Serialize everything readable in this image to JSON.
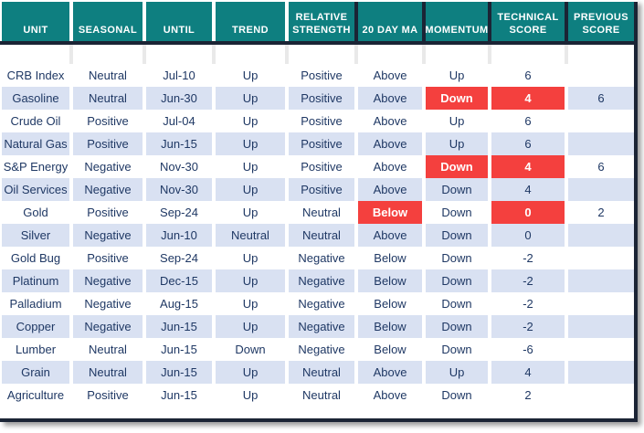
{
  "table": {
    "columns": [
      {
        "label": "UNIT"
      },
      {
        "label": "SEASONAL"
      },
      {
        "label": "UNTIL"
      },
      {
        "label": "TREND"
      },
      {
        "label": "RELATIVE STRENGTH"
      },
      {
        "label": "20 DAY MA",
        "dark_divider": true
      },
      {
        "label": "MOMENTUM",
        "dark_divider": true
      },
      {
        "label": "TECHNICAL SCORE",
        "dark_divider": true
      },
      {
        "label": "PREVIOUS SCORE",
        "dark_divider": true
      }
    ],
    "rows": [
      {
        "cells": [
          "CRB Index",
          "Neutral",
          "Jul-10",
          "Up",
          "Positive",
          "Above",
          "Up",
          "6",
          ""
        ],
        "alerts": []
      },
      {
        "cells": [
          "Gasoline",
          "Neutral",
          "Jun-30",
          "Up",
          "Positive",
          "Above",
          "Down",
          "4",
          "6"
        ],
        "alerts": [
          6,
          7
        ]
      },
      {
        "cells": [
          "Crude Oil",
          "Positive",
          "Jul-04",
          "Up",
          "Positive",
          "Above",
          "Up",
          "6",
          ""
        ],
        "alerts": []
      },
      {
        "cells": [
          "Natural Gas",
          "Positive",
          "Jun-15",
          "Up",
          "Positive",
          "Above",
          "Up",
          "6",
          ""
        ],
        "alerts": []
      },
      {
        "cells": [
          "S&P Energy",
          "Negative",
          "Nov-30",
          "Up",
          "Positive",
          "Above",
          "Down",
          "4",
          "6"
        ],
        "alerts": [
          6,
          7
        ]
      },
      {
        "cells": [
          "Oil Services",
          "Negative",
          "Nov-30",
          "Up",
          "Positive",
          "Above",
          "Down",
          "4",
          ""
        ],
        "alerts": []
      },
      {
        "cells": [
          "Gold",
          "Positive",
          "Sep-24",
          "Up",
          "Neutral",
          "Below",
          "Down",
          "0",
          "2"
        ],
        "alerts": [
          5,
          7
        ]
      },
      {
        "cells": [
          "Silver",
          "Negative",
          "Jun-10",
          "Neutral",
          "Neutral",
          "Above",
          "Down",
          "0",
          ""
        ],
        "alerts": []
      },
      {
        "cells": [
          "Gold Bug",
          "Positive",
          "Sep-24",
          "Up",
          "Negative",
          "Below",
          "Down",
          "-2",
          ""
        ],
        "alerts": []
      },
      {
        "cells": [
          "Platinum",
          "Negative",
          "Dec-15",
          "Up",
          "Negative",
          "Below",
          "Down",
          "-2",
          ""
        ],
        "alerts": []
      },
      {
        "cells": [
          "Palladium",
          "Negative",
          "Aug-15",
          "Up",
          "Negative",
          "Below",
          "Down",
          "-2",
          ""
        ],
        "alerts": []
      },
      {
        "cells": [
          "Copper",
          "Negative",
          "Jun-15",
          "Up",
          "Negative",
          "Below",
          "Down",
          "-2",
          ""
        ],
        "alerts": []
      },
      {
        "cells": [
          "Lumber",
          "Neutral",
          "Jun-15",
          "Down",
          "Negative",
          "Below",
          "Down",
          "-6",
          ""
        ],
        "alerts": []
      },
      {
        "cells": [
          "Grain",
          "Neutral",
          "Jun-15",
          "Up",
          "Neutral",
          "Above",
          "Up",
          "4",
          ""
        ],
        "alerts": []
      },
      {
        "cells": [
          "Agriculture",
          "Positive",
          "Jun-15",
          "Up",
          "Neutral",
          "Above",
          "Down",
          "2",
          ""
        ],
        "alerts": []
      }
    ]
  },
  "colors": {
    "header_bg": "#0E7F80",
    "stripe": "#D9E1F2",
    "alert": "#F4403E",
    "rule": "#1B2435",
    "text": "#1F3864"
  }
}
